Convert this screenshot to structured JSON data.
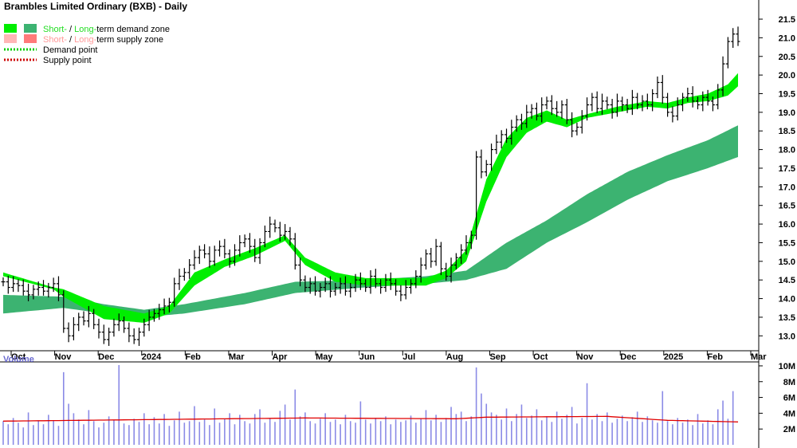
{
  "title": "Brambles Limited Ordinary (BXB) - Daily",
  "legend": [
    {
      "key": "demand-zone",
      "colors": [
        "#00ee00",
        "#3cb371"
      ],
      "parts": [
        {
          "text": "Short-",
          "color": "#22dd22"
        },
        {
          "text": " / ",
          "color": "#000000"
        },
        {
          "text": "Long-",
          "color": "#22dd22"
        },
        {
          "text": "term demand zone",
          "color": "#000000"
        }
      ]
    },
    {
      "key": "supply-zone",
      "colors": [
        "#ffb6b6",
        "#ff7a7a"
      ],
      "parts": [
        {
          "text": "Short-",
          "color": "#ff9999"
        },
        {
          "text": " / ",
          "color": "#000000"
        },
        {
          "text": "Long-",
          "color": "#ff9999"
        },
        {
          "text": "term supply zone",
          "color": "#000000"
        }
      ]
    },
    {
      "key": "demand-point",
      "line_color": "#00cc00",
      "parts": [
        {
          "text": "Demand point",
          "color": "#000000"
        }
      ]
    },
    {
      "key": "supply-point",
      "line_color": "#cc0000",
      "parts": [
        {
          "text": "Supply point",
          "color": "#000000"
        }
      ]
    }
  ],
  "volume_label": "Volume",
  "colors": {
    "short_demand": "#00ee00",
    "long_demand": "#3cb371",
    "short_supply": "#ffb3b3",
    "long_supply": "#ff6a1a",
    "volume_bar": "#8a8ae6",
    "volume_avg": "#e00000",
    "axis": "#000000"
  },
  "chart_data": {
    "type": "line",
    "price_axis": {
      "ticks": [
        "13.0",
        "13.5",
        "14.0",
        "14.5",
        "15.0",
        "15.5",
        "16.0",
        "16.5",
        "17.0",
        "17.5",
        "18.0",
        "18.5",
        "19.0",
        "19.5",
        "20.0",
        "20.5",
        "21.0",
        "21.5"
      ],
      "ylim": [
        12.6,
        21.8
      ]
    },
    "volume_axis": {
      "ticks": [
        "2M",
        "4M",
        "6M",
        "8M",
        "10M"
      ],
      "ylim": [
        0,
        10.5
      ]
    },
    "months": [
      "Oct",
      "Nov",
      "Dec",
      "2024",
      "Feb",
      "Mar",
      "Apr",
      "May",
      "Jun",
      "Jul",
      "Aug",
      "Sep",
      "Oct",
      "Nov",
      "Dec",
      "2025",
      "Feb",
      "Mar"
    ],
    "price": [
      [
        0,
        14.45
      ],
      [
        1,
        14.3
      ],
      [
        2,
        14.4
      ],
      [
        3,
        14.35
      ],
      [
        4,
        14.2
      ],
      [
        5,
        14.1
      ],
      [
        6,
        14.25
      ],
      [
        7,
        14.3
      ],
      [
        8,
        14.2
      ],
      [
        9,
        14.3
      ],
      [
        10,
        14.4
      ],
      [
        11,
        14.1
      ],
      [
        12,
        13.2
      ],
      [
        13,
        13.0
      ],
      [
        14,
        13.3
      ],
      [
        15,
        13.5
      ],
      [
        16,
        13.4
      ],
      [
        17,
        13.6
      ],
      [
        18,
        13.3
      ],
      [
        19,
        13.1
      ],
      [
        20,
        12.9
      ],
      [
        21,
        13.1
      ],
      [
        22,
        13.3
      ],
      [
        23,
        13.4
      ],
      [
        24,
        13.2
      ],
      [
        25,
        13.0
      ],
      [
        26,
        12.9
      ],
      [
        27,
        13.1
      ],
      [
        28,
        13.3
      ],
      [
        29,
        13.5
      ],
      [
        30,
        13.6
      ],
      [
        31,
        13.7
      ],
      [
        32,
        13.8
      ],
      [
        33,
        13.9
      ],
      [
        34,
        14.4
      ],
      [
        35,
        14.6
      ],
      [
        36,
        14.7
      ],
      [
        37,
        14.9
      ],
      [
        38,
        15.1
      ],
      [
        39,
        15.3
      ],
      [
        40,
        15.2
      ],
      [
        41,
        15.0
      ],
      [
        42,
        15.3
      ],
      [
        43,
        15.4
      ],
      [
        44,
        15.2
      ],
      [
        45,
        15.0
      ],
      [
        46,
        15.3
      ],
      [
        47,
        15.5
      ],
      [
        48,
        15.6
      ],
      [
        49,
        15.4
      ],
      [
        50,
        15.1
      ],
      [
        51,
        15.5
      ],
      [
        52,
        15.8
      ],
      [
        53,
        16.0
      ],
      [
        54,
        15.9
      ],
      [
        55,
        15.7
      ],
      [
        56,
        15.8
      ],
      [
        57,
        15.6
      ],
      [
        58,
        14.9
      ],
      [
        59,
        14.5
      ],
      [
        60,
        14.3
      ],
      [
        61,
        14.4
      ],
      [
        62,
        14.2
      ],
      [
        63,
        14.3
      ],
      [
        64,
        14.4
      ],
      [
        65,
        14.2
      ],
      [
        66,
        14.3
      ],
      [
        67,
        14.4
      ],
      [
        68,
        14.2
      ],
      [
        69,
        14.3
      ],
      [
        70,
        14.5
      ],
      [
        71,
        14.4
      ],
      [
        72,
        14.3
      ],
      [
        73,
        14.6
      ],
      [
        74,
        14.4
      ],
      [
        75,
        14.3
      ],
      [
        76,
        14.5
      ],
      [
        77,
        14.4
      ],
      [
        78,
        14.2
      ],
      [
        79,
        14.1
      ],
      [
        80,
        14.3
      ],
      [
        81,
        14.4
      ],
      [
        82,
        14.6
      ],
      [
        83,
        14.9
      ],
      [
        84,
        15.2
      ],
      [
        85,
        15.0
      ],
      [
        86,
        15.4
      ],
      [
        87,
        14.8
      ],
      [
        88,
        14.6
      ],
      [
        89,
        14.9
      ],
      [
        90,
        15.1
      ],
      [
        91,
        15.3
      ],
      [
        92,
        15.5
      ],
      [
        93,
        15.7
      ],
      [
        94,
        17.8
      ],
      [
        95,
        17.4
      ],
      [
        96,
        17.6
      ],
      [
        97,
        18.0
      ],
      [
        98,
        18.2
      ],
      [
        99,
        18.4
      ],
      [
        100,
        18.3
      ],
      [
        101,
        18.6
      ],
      [
        102,
        18.8
      ],
      [
        103,
        18.7
      ],
      [
        104,
        19.0
      ],
      [
        105,
        19.1
      ],
      [
        106,
        18.9
      ],
      [
        107,
        19.2
      ],
      [
        108,
        19.3
      ],
      [
        109,
        19.1
      ],
      [
        110,
        19.0
      ],
      [
        111,
        19.2
      ],
      [
        112,
        18.8
      ],
      [
        113,
        18.5
      ],
      [
        114,
        18.6
      ],
      [
        115,
        18.9
      ],
      [
        116,
        19.2
      ],
      [
        117,
        19.4
      ],
      [
        118,
        19.1
      ],
      [
        119,
        19.3
      ],
      [
        120,
        19.2
      ],
      [
        121,
        19.0
      ],
      [
        122,
        19.3
      ],
      [
        123,
        19.2
      ],
      [
        124,
        19.1
      ],
      [
        125,
        19.4
      ],
      [
        126,
        19.2
      ],
      [
        127,
        19.3
      ],
      [
        128,
        19.2
      ],
      [
        129,
        19.5
      ],
      [
        130,
        19.8
      ],
      [
        131,
        19.4
      ],
      [
        132,
        19.0
      ],
      [
        133,
        18.9
      ],
      [
        134,
        19.2
      ],
      [
        135,
        19.4
      ],
      [
        136,
        19.5
      ],
      [
        137,
        19.3
      ],
      [
        138,
        19.2
      ],
      [
        139,
        19.4
      ],
      [
        140,
        19.3
      ],
      [
        141,
        19.2
      ],
      [
        142,
        19.6
      ],
      [
        143,
        20.3
      ],
      [
        144,
        20.9
      ],
      [
        145,
        21.1
      ],
      [
        146,
        20.9
      ]
    ],
    "short_zone": [
      [
        0,
        14.7,
        14.6
      ],
      [
        10,
        14.3,
        14.25
      ],
      [
        12,
        14.25,
        14.05
      ],
      [
        20,
        13.8,
        13.45
      ],
      [
        28,
        13.6,
        13.35
      ],
      [
        33,
        13.8,
        13.6
      ],
      [
        38,
        14.7,
        14.35
      ],
      [
        44,
        15.05,
        14.85
      ],
      [
        50,
        15.35,
        15.15
      ],
      [
        56,
        15.7,
        15.55
      ],
      [
        60,
        15.1,
        14.9
      ],
      [
        66,
        14.7,
        14.45
      ],
      [
        72,
        14.55,
        14.35
      ],
      [
        80,
        14.55,
        14.35
      ],
      [
        84,
        14.55,
        14.35
      ],
      [
        88,
        14.75,
        14.55
      ],
      [
        92,
        15.3,
        15.0
      ],
      [
        96,
        17.2,
        16.6
      ],
      [
        100,
        18.3,
        17.8
      ],
      [
        104,
        18.85,
        18.45
      ],
      [
        108,
        19.05,
        18.75
      ],
      [
        112,
        18.8,
        18.6
      ],
      [
        116,
        18.95,
        18.85
      ],
      [
        122,
        19.15,
        19.0
      ],
      [
        128,
        19.3,
        19.15
      ],
      [
        132,
        19.25,
        19.1
      ],
      [
        136,
        19.4,
        19.25
      ],
      [
        140,
        19.5,
        19.3
      ],
      [
        144,
        19.75,
        19.45
      ],
      [
        146,
        20.05,
        19.7
      ]
    ],
    "long_zone": [
      [
        0,
        14.1,
        13.6
      ],
      [
        12,
        14.05,
        13.75
      ],
      [
        20,
        13.85,
        13.6
      ],
      [
        28,
        13.7,
        13.5
      ],
      [
        36,
        13.85,
        13.6
      ],
      [
        48,
        14.15,
        13.85
      ],
      [
        58,
        14.45,
        14.15
      ],
      [
        72,
        14.5,
        14.3
      ],
      [
        84,
        14.6,
        14.4
      ],
      [
        92,
        14.75,
        14.5
      ],
      [
        100,
        15.5,
        14.8
      ],
      [
        108,
        16.1,
        15.5
      ],
      [
        116,
        16.8,
        16.05
      ],
      [
        124,
        17.4,
        16.65
      ],
      [
        132,
        17.85,
        17.15
      ],
      [
        140,
        18.25,
        17.5
      ],
      [
        146,
        18.65,
        17.8
      ]
    ],
    "volume": [
      3,
      2.6,
      3.4,
      2.8,
      2.2,
      4.1,
      2.5,
      3.0,
      2.6,
      3.8,
      3.1,
      2.4,
      9.2,
      5.2,
      4.0,
      3.2,
      2.6,
      4.4,
      3.0,
      2.2,
      2.8,
      3.6,
      3.1,
      10.1,
      2.7,
      2.5,
      3.3,
      2.9,
      4.0,
      2.6,
      3.5,
      2.7,
      3.9,
      2.4,
      3.1,
      4.2,
      2.8,
      3.0,
      4.9,
      2.9,
      3.2,
      2.5,
      4.6,
      2.8,
      3.3,
      4.0,
      2.6,
      3.8,
      3.0,
      2.7,
      3.9,
      4.5,
      2.8,
      3.4,
      2.9,
      4.3,
      5.1,
      3.2,
      7.0,
      3.6,
      4.1,
      3.0,
      2.7,
      3.3,
      4.0,
      2.9,
      3.2,
      2.6,
      3.8,
      3.0,
      2.8,
      5.5,
      3.2,
      2.7,
      3.4,
      3.0,
      3.6,
      2.6,
      3.2,
      2.9,
      3.1,
      3.7,
      2.8,
      3.3,
      4.4,
      3.1,
      3.8,
      2.9,
      3.4,
      4.8,
      3.9,
      4.2,
      3.0,
      3.6,
      9.8,
      6.5,
      5.2,
      4.1,
      3.8,
      3.2,
      4.6,
      3.0,
      3.9,
      5.1,
      3.4,
      3.7,
      4.5,
      3.1,
      3.6,
      2.9,
      4.2,
      3.3,
      3.8,
      4.8,
      2.7,
      3.4,
      7.8,
      3.2,
      3.9,
      3.0,
      4.1,
      2.8,
      3.3,
      3.7,
      3.0,
      3.5,
      4.2,
      2.9,
      3.6,
      3.1,
      2.8,
      6.8,
      3.0,
      2.6,
      3.4,
      2.8,
      3.2,
      2.5,
      3.9,
      2.7,
      3.1,
      2.6,
      4.5,
      5.6,
      3.3,
      6.8
    ],
    "volume_avg": [
      [
        0,
        3.0
      ],
      [
        30,
        3.2
      ],
      [
        60,
        3.4
      ],
      [
        90,
        3.3
      ],
      [
        96,
        3.5
      ],
      [
        120,
        3.6
      ],
      [
        132,
        3.1
      ],
      [
        146,
        2.9
      ]
    ]
  }
}
